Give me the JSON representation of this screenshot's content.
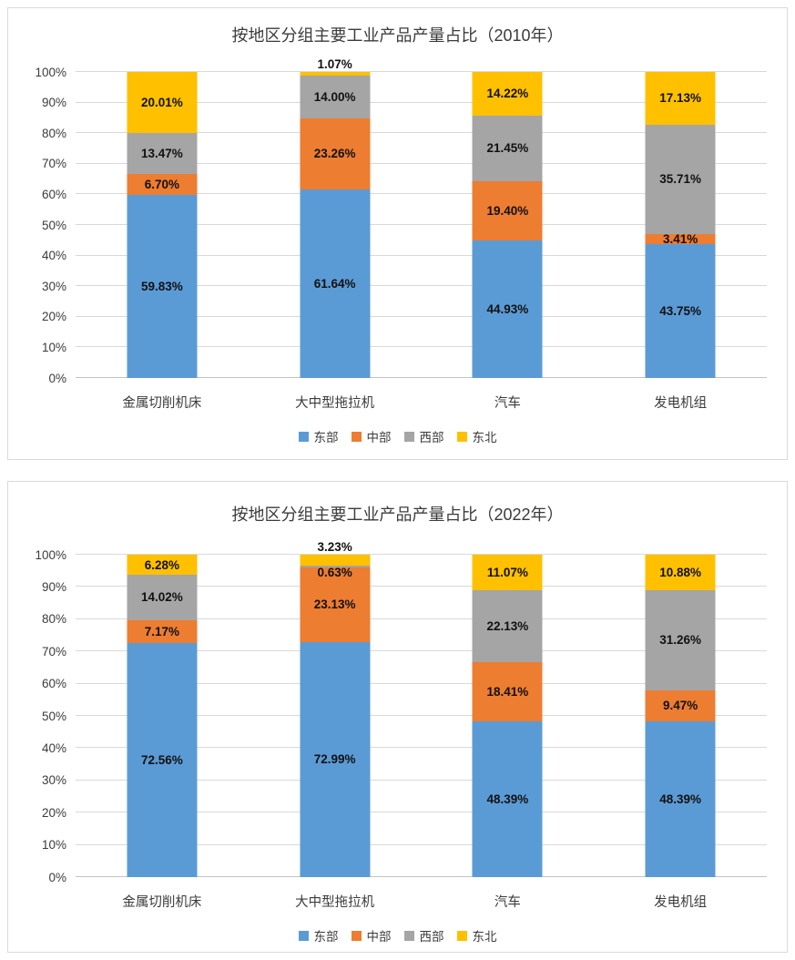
{
  "page": {
    "background": "#ffffff",
    "panel_border": "#d9d9d9",
    "gridline_color": "#d9d9d9"
  },
  "colors": {
    "东部": "#5B9BD5",
    "中部": "#ED7D31",
    "西部": "#A5A5A5",
    "东北": "#FFC000"
  },
  "chart_data": [
    {
      "type": "bar",
      "subtype": "stacked-100-percent-column",
      "title": "按地区分组主要工业产品产量占比（2010年）",
      "categories": [
        "金属切削机床",
        "大中型拖拉机",
        "汽车",
        "发电机组"
      ],
      "series": [
        {
          "name": "东部",
          "values": [
            59.83,
            61.64,
            44.93,
            43.75
          ]
        },
        {
          "name": "中部",
          "values": [
            6.7,
            23.26,
            19.4,
            3.41
          ]
        },
        {
          "name": "西部",
          "values": [
            13.47,
            14.0,
            21.45,
            35.71
          ]
        },
        {
          "name": "东北",
          "values": [
            20.01,
            1.07,
            14.22,
            17.13
          ]
        }
      ],
      "y_axis": {
        "min": 0,
        "max": 100,
        "step": 10,
        "ticks": [
          "0%",
          "10%",
          "20%",
          "30%",
          "40%",
          "50%",
          "60%",
          "70%",
          "80%",
          "90%",
          "100%"
        ]
      },
      "grid": true,
      "legend_position": "bottom",
      "data_labels": "percent, 2 decimals, inside center",
      "label_overrides": [
        {
          "series": 3,
          "category": 1,
          "pos": "outside-top"
        }
      ]
    },
    {
      "type": "bar",
      "subtype": "stacked-100-percent-column",
      "title": "按地区分组主要工业产品产量占比（2022年）",
      "categories": [
        "金属切削机床",
        "大中型拖拉机",
        "汽车",
        "发电机组"
      ],
      "series": [
        {
          "name": "东部",
          "values": [
            72.56,
            72.99,
            48.39,
            48.39
          ]
        },
        {
          "name": "中部",
          "values": [
            7.17,
            23.13,
            18.41,
            9.47
          ]
        },
        {
          "name": "西部",
          "values": [
            14.02,
            0.63,
            22.13,
            31.26
          ]
        },
        {
          "name": "东北",
          "values": [
            6.28,
            3.23,
            11.07,
            10.88
          ]
        }
      ],
      "y_axis": {
        "min": 0,
        "max": 100,
        "step": 10,
        "ticks": [
          "0%",
          "10%",
          "20%",
          "30%",
          "40%",
          "50%",
          "60%",
          "70%",
          "80%",
          "90%",
          "100%"
        ]
      },
      "grid": true,
      "legend_position": "bottom",
      "data_labels": "percent, 2 decimals, inside center",
      "label_overrides": [
        {
          "series": 3,
          "category": 1,
          "pos": "outside-top"
        },
        {
          "series": 2,
          "category": 1,
          "dy_pct": -2
        }
      ]
    }
  ]
}
